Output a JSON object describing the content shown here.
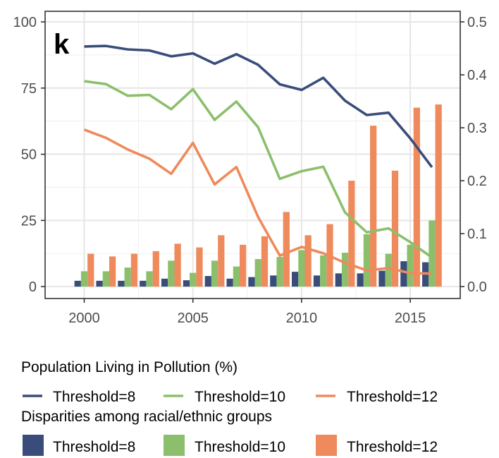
{
  "chart_data": {
    "type": "bar+line",
    "panel_label": "k",
    "x": [
      2000,
      2001,
      2002,
      2003,
      2004,
      2005,
      2006,
      2007,
      2008,
      2009,
      2010,
      2011,
      2012,
      2013,
      2014,
      2015,
      2016
    ],
    "xlim": [
      1998.2,
      2017.3
    ],
    "x_ticks": [
      2000,
      2005,
      2010,
      2015
    ],
    "ylim_left": [
      -4.5,
      104
    ],
    "y_ticks_left": [
      0,
      25,
      50,
      75,
      100
    ],
    "ylim_right": [
      -0.0225,
      0.52
    ],
    "y_ticks_right": [
      0.0,
      0.1,
      0.2,
      0.3,
      0.4,
      0.5
    ],
    "y_tick_labels_right": [
      "0.0",
      "0.1",
      "0.2",
      "0.3",
      "0.4",
      "0.5"
    ],
    "grid": true,
    "line_series": [
      {
        "name": "Threshold=8",
        "color": "#3a4d7a",
        "values": [
          90.7,
          90.9,
          89.6,
          89.2,
          87.0,
          88.1,
          84.2,
          87.8,
          83.8,
          76.4,
          74.3,
          78.9,
          70.2,
          64.8,
          65.7,
          56.0,
          45.1
        ]
      },
      {
        "name": "Threshold=10",
        "color": "#8cbf6c",
        "values": [
          77.6,
          76.5,
          72.1,
          72.4,
          67.0,
          74.6,
          63.0,
          69.9,
          60.2,
          40.7,
          43.6,
          45.3,
          28.0,
          20.5,
          22.0,
          16.8,
          11.0
        ]
      },
      {
        "name": "Threshold=12",
        "color": "#ee8a5c",
        "values": [
          59.3,
          56.2,
          51.8,
          48.3,
          42.6,
          54.3,
          38.6,
          45.2,
          26.3,
          11.7,
          15.0,
          12.6,
          9.0,
          6.1,
          7.0,
          5.1,
          4.9
        ]
      }
    ],
    "bar_series": [
      {
        "name": "Threshold=8",
        "color": "#3a4d7a",
        "values": [
          0.011,
          0.011,
          0.011,
          0.011,
          0.015,
          0.012,
          0.02,
          0.015,
          0.018,
          0.021,
          0.028,
          0.021,
          0.025,
          0.025,
          0.03,
          0.048,
          0.046
        ]
      },
      {
        "name": "Threshold=10",
        "color": "#8cbf6c",
        "values": [
          0.029,
          0.029,
          0.036,
          0.029,
          0.049,
          0.026,
          0.049,
          0.038,
          0.052,
          0.056,
          0.069,
          0.059,
          0.064,
          0.099,
          0.062,
          0.079,
          0.125
        ]
      },
      {
        "name": "Threshold=12",
        "color": "#ee8a5c",
        "values": [
          0.062,
          0.057,
          0.062,
          0.067,
          0.081,
          0.074,
          0.097,
          0.079,
          0.095,
          0.141,
          0.097,
          0.118,
          0.2,
          0.304,
          0.219,
          0.338,
          0.344
        ]
      }
    ],
    "legend": {
      "placement": "bottom",
      "line_title": "Population Living in Pollution (%)",
      "bar_title": "Disparities among racial/ethnic groups"
    }
  }
}
